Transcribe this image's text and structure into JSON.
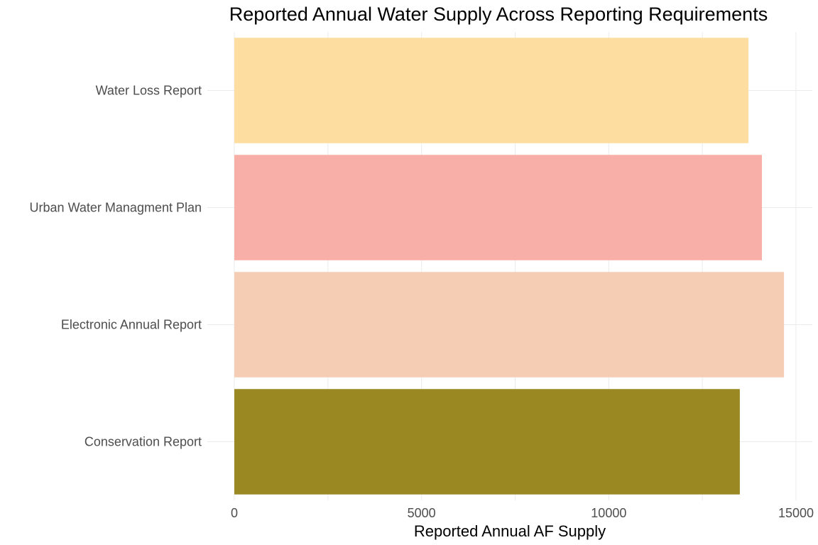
{
  "chart_data": {
    "type": "bar",
    "orientation": "horizontal",
    "title": "Reported Annual Water Supply Across Reporting Requirements",
    "xlabel": "Reported Annual AF Supply",
    "ylabel": "",
    "categories": [
      "Conservation Report",
      "Electronic Annual Report",
      "Urban Water Managment Plan",
      "Water Loss Report"
    ],
    "values": [
      13500,
      14680,
      14090,
      13730
    ],
    "colors": [
      "#9a8822",
      "#f5cdb4",
      "#f8afa8",
      "#fddda0"
    ],
    "xlim": [
      0,
      15450
    ],
    "xticks": [
      0,
      5000,
      10000,
      15000
    ],
    "xtick_labels": [
      "0",
      "5000",
      "10000",
      "15000"
    ],
    "grid": true,
    "legend": "none"
  }
}
